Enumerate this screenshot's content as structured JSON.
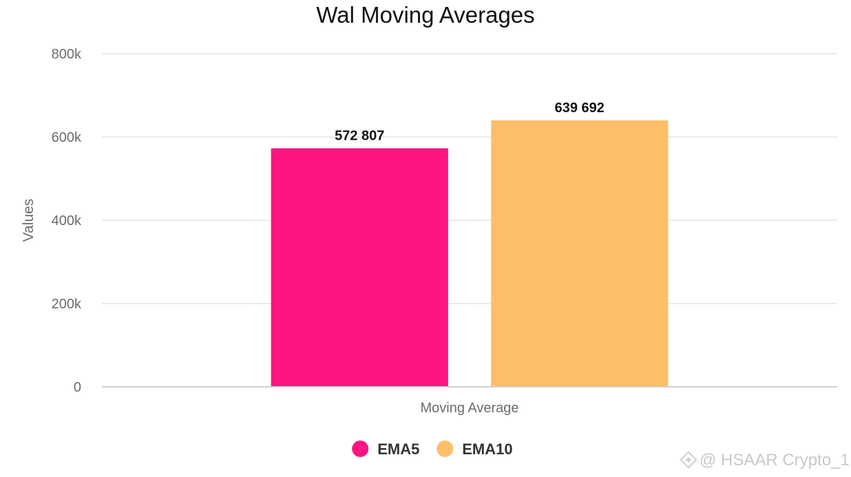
{
  "chart_data": {
    "type": "bar",
    "title": "Wal Moving Averages",
    "xlabel": "Moving Average",
    "ylabel": "Values",
    "ylim": [
      0,
      800000
    ],
    "yticks": [
      0,
      200000,
      400000,
      600000,
      800000
    ],
    "ytick_labels": [
      "0",
      "200k",
      "400k",
      "600k",
      "800k"
    ],
    "categories": [
      "Moving Average"
    ],
    "series": [
      {
        "name": "EMA5",
        "values": [
          572807
        ],
        "label": "572 807",
        "color": "#ff1480"
      },
      {
        "name": "EMA10",
        "values": [
          639692
        ],
        "label": "639 692",
        "color": "#ffbf69"
      }
    ],
    "legend": "bottom-center",
    "grid": true
  },
  "watermark": {
    "text": "@ HSAAR Crypto_1",
    "icon": "diamond-logo-icon"
  }
}
